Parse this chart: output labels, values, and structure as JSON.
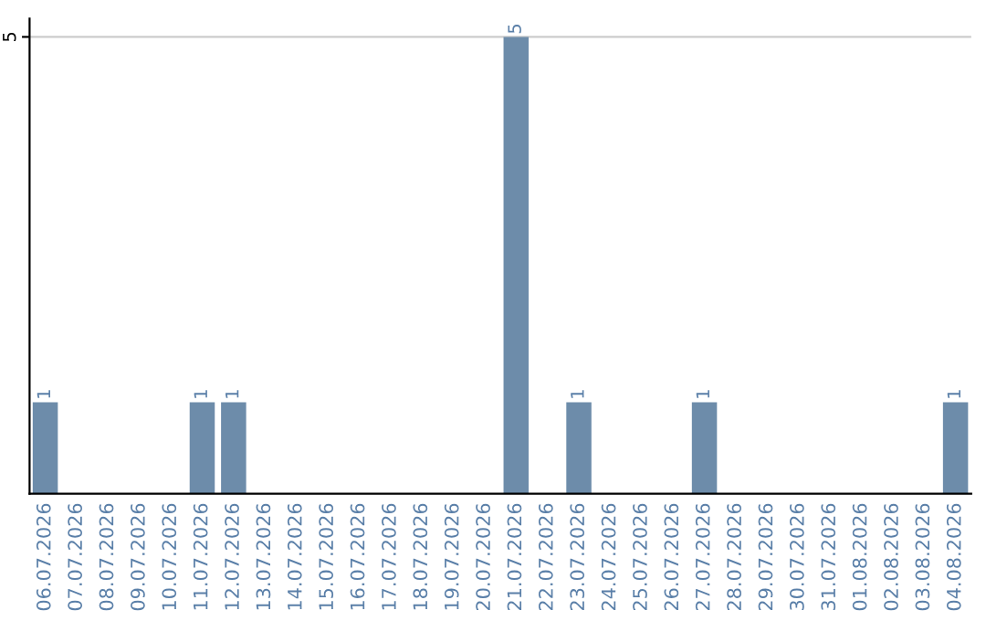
{
  "chart_data": {
    "type": "bar",
    "categories": [
      "06.07.2026",
      "07.07.2026",
      "08.07.2026",
      "09.07.2026",
      "10.07.2026",
      "11.07.2026",
      "12.07.2026",
      "13.07.2026",
      "14.07.2026",
      "15.07.2026",
      "16.07.2026",
      "17.07.2026",
      "18.07.2026",
      "19.07.2026",
      "20.07.2026",
      "21.07.2026",
      "22.07.2026",
      "23.07.2026",
      "24.07.2026",
      "25.07.2026",
      "26.07.2026",
      "27.07.2026",
      "28.07.2026",
      "29.07.2026",
      "30.07.2026",
      "31.07.2026",
      "01.08.2026",
      "02.08.2026",
      "03.08.2026",
      "04.08.2026"
    ],
    "values": [
      1,
      0,
      0,
      0,
      0,
      1,
      1,
      0,
      0,
      0,
      0,
      0,
      0,
      0,
      0,
      5,
      0,
      1,
      0,
      0,
      0,
      1,
      0,
      0,
      0,
      0,
      0,
      0,
      0,
      1
    ],
    "value_labels": [
      "1",
      null,
      null,
      null,
      null,
      "1",
      "1",
      null,
      null,
      null,
      null,
      null,
      null,
      null,
      null,
      "5",
      null,
      "1",
      null,
      null,
      null,
      "1",
      null,
      null,
      null,
      null,
      null,
      null,
      null,
      "1"
    ],
    "color": "#6d8caa",
    "ylim": [
      0,
      5.2
    ],
    "yticks": [
      5
    ],
    "grid": "y"
  }
}
